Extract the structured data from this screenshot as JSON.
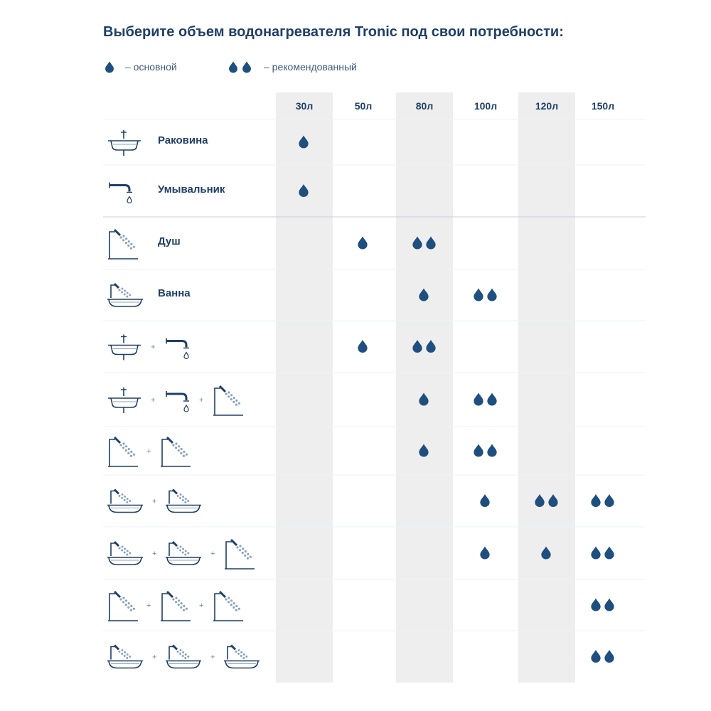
{
  "title": "Выберите объем водонагревателя Tronic под свои потребности:",
  "legend": {
    "basic": {
      "label": "– основной",
      "drops": 1
    },
    "recommended": {
      "label": "– рекомендованный",
      "drops": 2
    }
  },
  "colors": {
    "drop": "#1f4f7f",
    "text": "#1f3f66",
    "shade": "#eeeeee",
    "icon": "#1f3f66",
    "rule": "#d5dce4"
  },
  "columns": [
    "30л",
    "50л",
    "80л",
    "100л",
    "120л",
    "150л"
  ],
  "rows": [
    {
      "label": "Раковина",
      "icons": [
        "sink"
      ],
      "marks": {
        "30л": "basic"
      }
    },
    {
      "label": "Умывальник",
      "icons": [
        "tap"
      ],
      "marks": {
        "30л": "basic"
      }
    },
    {
      "label": "Душ",
      "icons": [
        "shower"
      ],
      "marks": {
        "50л": "basic",
        "80л": "recommended"
      }
    },
    {
      "label": "Ванна",
      "icons": [
        "bath"
      ],
      "marks": {
        "80л": "basic",
        "100л": "recommended"
      }
    },
    {
      "label": "",
      "icons": [
        "sink",
        "tap"
      ],
      "marks": {
        "50л": "basic",
        "80л": "recommended"
      }
    },
    {
      "label": "",
      "icons": [
        "sink",
        "tap",
        "shower"
      ],
      "marks": {
        "80л": "basic",
        "100л": "recommended"
      }
    },
    {
      "label": "",
      "icons": [
        "shower",
        "shower"
      ],
      "marks": {
        "80л": "basic",
        "100л": "recommended"
      }
    },
    {
      "label": "",
      "icons": [
        "bath",
        "bath"
      ],
      "marks": {
        "100л": "basic",
        "120л": "recommended",
        "150л": "recommended"
      }
    },
    {
      "label": "",
      "icons": [
        "bath",
        "bath",
        "shower"
      ],
      "marks": {
        "100л": "basic",
        "120л": "basic",
        "150л": "recommended"
      }
    },
    {
      "label": "",
      "icons": [
        "shower",
        "shower",
        "shower"
      ],
      "marks": {
        "150л": "recommended"
      }
    },
    {
      "label": "",
      "icons": [
        "bath",
        "bath",
        "bath"
      ],
      "marks": {
        "150л": "recommended"
      }
    }
  ],
  "plus_sign": "+"
}
